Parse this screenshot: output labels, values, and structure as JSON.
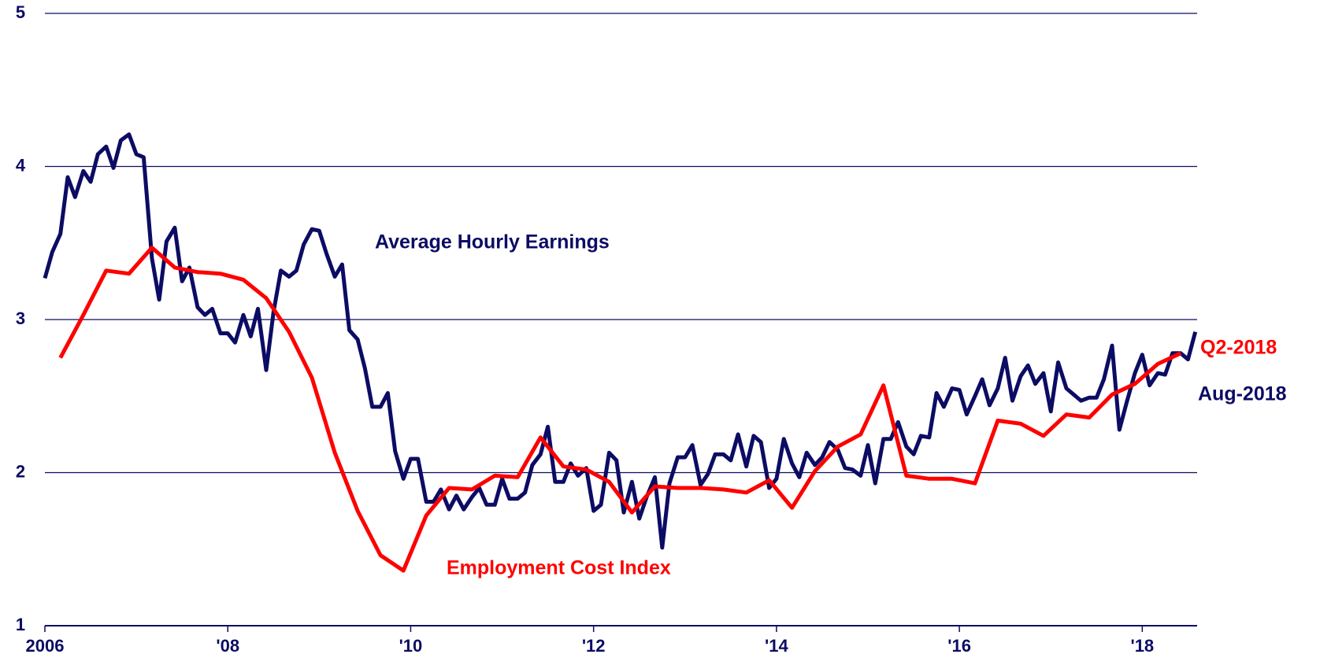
{
  "chart_data": {
    "type": "line",
    "xlim": [
      2006,
      2018.6
    ],
    "xticks": [
      2006,
      {
        "value": 2008,
        "label": "'08"
      },
      {
        "value": 2010,
        "label": "'10"
      },
      {
        "value": 2012,
        "label": "'12"
      },
      {
        "value": 2014,
        "label": "'14"
      },
      {
        "value": 2016,
        "label": "'16"
      },
      {
        "value": 2018,
        "label": "'18"
      }
    ],
    "ylim": [
      1,
      5
    ],
    "yticks": [
      1,
      2,
      3,
      4,
      5
    ],
    "grid": true,
    "series": [
      {
        "name": "Average Hourly Earnings",
        "end_label": "Aug-2018",
        "color": "#0c0c64",
        "x": [
          2006,
          2006.08,
          2006.17,
          2006.25,
          2006.33,
          2006.42,
          2006.5,
          2006.58,
          2006.67,
          2006.75,
          2006.83,
          2006.92,
          2007,
          2007.08,
          2007.17,
          2007.25,
          2007.33,
          2007.42,
          2007.5,
          2007.58,
          2007.67,
          2007.75,
          2007.83,
          2007.92,
          2008,
          2008.08,
          2008.17,
          2008.25,
          2008.33,
          2008.42,
          2008.5,
          2008.58,
          2008.67,
          2008.75,
          2008.83,
          2008.92,
          2009,
          2009.08,
          2009.17,
          2009.25,
          2009.33,
          2009.42,
          2009.5,
          2009.58,
          2009.67,
          2009.75,
          2009.83,
          2009.92,
          2010,
          2010.08,
          2010.17,
          2010.25,
          2010.33,
          2010.42,
          2010.5,
          2010.58,
          2010.67,
          2010.75,
          2010.83,
          2010.92,
          2011,
          2011.08,
          2011.17,
          2011.25,
          2011.33,
          2011.42,
          2011.5,
          2011.58,
          2011.67,
          2011.75,
          2011.83,
          2011.92,
          2012,
          2012.08,
          2012.17,
          2012.25,
          2012.33,
          2012.42,
          2012.5,
          2012.58,
          2012.67,
          2012.75,
          2012.83,
          2012.92,
          2013,
          2013.08,
          2013.17,
          2013.25,
          2013.33,
          2013.42,
          2013.5,
          2013.58,
          2013.67,
          2013.75,
          2013.83,
          2013.92,
          2014,
          2014.08,
          2014.17,
          2014.25,
          2014.33,
          2014.42,
          2014.5,
          2014.58,
          2014.67,
          2014.75,
          2014.83,
          2014.92,
          2015,
          2015.08,
          2015.17,
          2015.25,
          2015.33,
          2015.42,
          2015.5,
          2015.58,
          2015.67,
          2015.75,
          2015.83,
          2015.92,
          2016,
          2016.08,
          2016.17,
          2016.25,
          2016.33,
          2016.42,
          2016.5,
          2016.58,
          2016.67,
          2016.75,
          2016.83,
          2016.92,
          2017,
          2017.08,
          2017.17,
          2017.25,
          2017.33,
          2017.42,
          2017.5,
          2017.58,
          2017.67,
          2017.75,
          2017.83,
          2017.92,
          2018,
          2018.08,
          2018.17,
          2018.25,
          2018.33,
          2018.42,
          2018.5,
          2018.58
        ],
        "values": [
          3.27,
          3.44,
          3.56,
          3.93,
          3.8,
          3.97,
          3.9,
          4.08,
          4.13,
          3.99,
          4.17,
          4.21,
          4.08,
          4.06,
          3.4,
          3.13,
          3.51,
          3.6,
          3.25,
          3.34,
          3.08,
          3.03,
          3.07,
          2.91,
          2.91,
          2.85,
          3.03,
          2.89,
          3.07,
          2.67,
          3.05,
          3.32,
          3.28,
          3.32,
          3.49,
          3.59,
          3.58,
          3.43,
          3.28,
          3.36,
          2.93,
          2.87,
          2.68,
          2.43,
          2.43,
          2.52,
          2.14,
          1.96,
          2.09,
          2.09,
          1.81,
          1.81,
          1.89,
          1.76,
          1.85,
          1.76,
          1.84,
          1.9,
          1.79,
          1.79,
          1.96,
          1.83,
          1.83,
          1.87,
          2.05,
          2.12,
          2.3,
          1.94,
          1.94,
          2.06,
          1.98,
          2.03,
          1.75,
          1.79,
          2.13,
          2.08,
          1.74,
          1.94,
          1.7,
          1.84,
          1.97,
          1.51,
          1.93,
          2.1,
          2.1,
          2.18,
          1.92,
          1.99,
          2.12,
          2.12,
          2.08,
          2.25,
          2.04,
          2.24,
          2.2,
          1.9,
          1.96,
          2.22,
          2.06,
          1.97,
          2.13,
          2.05,
          2.1,
          2.2,
          2.15,
          2.03,
          2.02,
          1.98,
          2.18,
          1.93,
          2.22,
          2.22,
          2.33,
          2.17,
          2.12,
          2.24,
          2.23,
          2.52,
          2.43,
          2.55,
          2.54,
          2.38,
          2.5,
          2.61,
          2.44,
          2.55,
          2.75,
          2.47,
          2.63,
          2.7,
          2.58,
          2.65,
          2.4,
          2.72,
          2.55,
          2.51,
          2.47,
          2.49,
          2.49,
          2.61,
          2.83,
          2.28,
          2.46,
          2.65,
          2.77,
          2.57,
          2.65,
          2.64,
          2.78,
          2.78,
          2.74,
          2.92
        ]
      },
      {
        "name": "Employment Cost Index",
        "end_label": "Q2-2018",
        "color": "#ff0000",
        "x": [
          2006.17,
          2006.42,
          2006.67,
          2006.92,
          2007.17,
          2007.42,
          2007.67,
          2007.92,
          2008.17,
          2008.42,
          2008.67,
          2008.92,
          2009.17,
          2009.42,
          2009.67,
          2009.92,
          2010.17,
          2010.42,
          2010.67,
          2010.92,
          2011.17,
          2011.42,
          2011.67,
          2011.92,
          2012.17,
          2012.42,
          2012.67,
          2012.92,
          2013.17,
          2013.42,
          2013.67,
          2013.92,
          2014.17,
          2014.42,
          2014.67,
          2014.92,
          2015.17,
          2015.42,
          2015.67,
          2015.92,
          2016.17,
          2016.42,
          2016.67,
          2016.92,
          2017.17,
          2017.42,
          2017.67,
          2017.92,
          2018.17,
          2018.42
        ],
        "values": [
          2.75,
          3.03,
          3.32,
          3.3,
          3.47,
          3.34,
          3.31,
          3.3,
          3.26,
          3.14,
          2.92,
          2.62,
          2.13,
          1.75,
          1.46,
          1.36,
          1.72,
          1.9,
          1.89,
          1.98,
          1.97,
          2.23,
          2.04,
          2.02,
          1.94,
          1.74,
          1.91,
          1.9,
          1.9,
          1.89,
          1.87,
          1.95,
          1.77,
          2.01,
          2.17,
          2.25,
          2.57,
          1.98,
          1.96,
          1.96,
          1.93,
          2.34,
          2.32,
          2.24,
          2.38,
          2.36,
          2.51,
          2.58,
          2.71,
          2.78
        ]
      }
    ]
  }
}
